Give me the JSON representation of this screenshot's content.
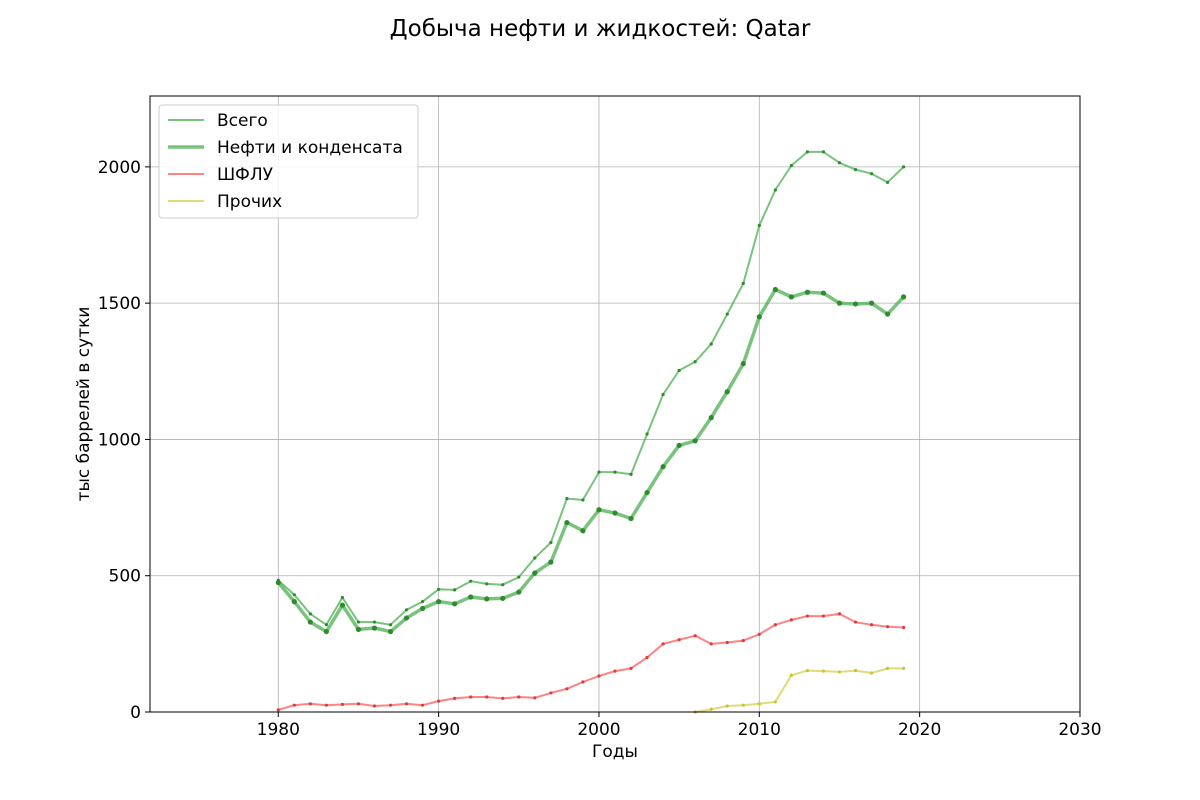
{
  "chart_data": {
    "type": "line",
    "title": "Добыча нефти и жидкостей: Qatar",
    "xlabel": "Годы",
    "ylabel": "тыс баррелей в сутки",
    "xlim": [
      1972,
      2030
    ],
    "ylim": [
      0,
      2260
    ],
    "xticks": [
      1980,
      1990,
      2000,
      2010,
      2020,
      2030
    ],
    "yticks": [
      0,
      500,
      1000,
      1500,
      2000
    ],
    "grid": true,
    "legend_position": "top-left",
    "series": [
      {
        "name": "Всего",
        "color": "#4caf50",
        "x": [
          1980,
          1981,
          1982,
          1983,
          1984,
          1985,
          1986,
          1987,
          1988,
          1989,
          1990,
          1991,
          1992,
          1993,
          1994,
          1995,
          1996,
          1997,
          1998,
          1999,
          2000,
          2001,
          2002,
          2003,
          2004,
          2005,
          2006,
          2007,
          2008,
          2009,
          2010,
          2011,
          2012,
          2013,
          2014,
          2015,
          2016,
          2017,
          2018,
          2019
        ],
        "values": [
          483,
          430,
          360,
          320,
          420,
          330,
          330,
          320,
          375,
          405,
          450,
          448,
          480,
          470,
          467,
          495,
          565,
          622,
          783,
          778,
          880,
          880,
          872,
          1020,
          1165,
          1253,
          1285,
          1350,
          1460,
          1572,
          1785,
          1915,
          2005,
          2055,
          2055,
          2015,
          1990,
          1975,
          1943,
          2000
        ]
      },
      {
        "name": "Нефти и конденсата",
        "color": "#4caf50",
        "x": [
          1980,
          1981,
          1982,
          1983,
          1984,
          1985,
          1986,
          1987,
          1988,
          1989,
          1990,
          1991,
          1992,
          1993,
          1994,
          1995,
          1996,
          1997,
          1998,
          1999,
          2000,
          2001,
          2002,
          2003,
          2004,
          2005,
          2006,
          2007,
          2008,
          2009,
          2010,
          2011,
          2012,
          2013,
          2014,
          2015,
          2016,
          2017,
          2018,
          2019
        ],
        "values": [
          475,
          405,
          330,
          295,
          392,
          303,
          308,
          295,
          345,
          380,
          405,
          397,
          422,
          415,
          417,
          440,
          510,
          550,
          695,
          665,
          742,
          730,
          710,
          805,
          900,
          978,
          995,
          1080,
          1175,
          1278,
          1450,
          1550,
          1523,
          1540,
          1537,
          1500,
          1497,
          1500,
          1460,
          1523
        ]
      },
      {
        "name": "ШФЛУ",
        "color": "#ff5a5a",
        "x": [
          1980,
          1981,
          1982,
          1983,
          1984,
          1985,
          1986,
          1987,
          1988,
          1989,
          1990,
          1991,
          1992,
          1993,
          1994,
          1995,
          1996,
          1997,
          1998,
          1999,
          2000,
          2001,
          2002,
          2003,
          2004,
          2005,
          2006,
          2007,
          2008,
          2009,
          2010,
          2011,
          2012,
          2013,
          2014,
          2015,
          2016,
          2017,
          2018,
          2019
        ],
        "values": [
          8,
          25,
          30,
          25,
          28,
          30,
          22,
          25,
          30,
          25,
          40,
          50,
          55,
          55,
          50,
          55,
          52,
          70,
          85,
          110,
          132,
          150,
          160,
          200,
          250,
          265,
          280,
          250,
          255,
          262,
          285,
          320,
          338,
          352,
          352,
          360,
          330,
          320,
          313,
          310
        ]
      },
      {
        "name": "Прочих",
        "color": "#d4cf4f",
        "x": [
          2006,
          2007,
          2008,
          2009,
          2010,
          2011,
          2012,
          2013,
          2014,
          2015,
          2016,
          2017,
          2018,
          2019
        ],
        "values": [
          0,
          10,
          22,
          25,
          30,
          37,
          135,
          152,
          150,
          147,
          152,
          143,
          160,
          160
        ]
      }
    ]
  }
}
